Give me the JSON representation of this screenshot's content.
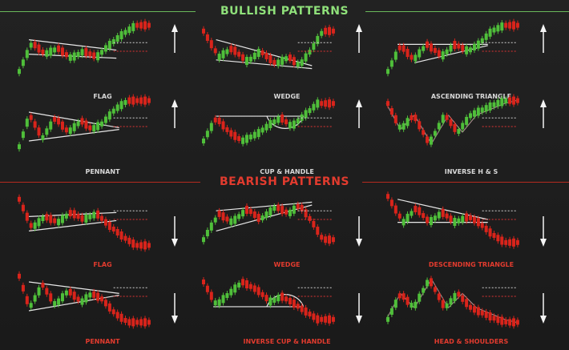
{
  "sections": {
    "bullish": {
      "title": "BULLISH PATTERNS",
      "color": "#8fe07a"
    },
    "bearish": {
      "title": "BEARISH PATTERNS",
      "color": "#e23b2e"
    }
  },
  "colors": {
    "up_candle": "#4fbf3a",
    "down_candle": "#d9241b",
    "trendline": "#e8e8e8",
    "dashed_level": "#d33",
    "background": "#1c1c1c"
  },
  "patterns": {
    "bullish": [
      {
        "label": "FLAG",
        "kind": "flag"
      },
      {
        "label": "WEDGE",
        "kind": "wedge"
      },
      {
        "label": "ASCENDING TRIANGLE",
        "kind": "asc-triangle"
      },
      {
        "label": "PENNANT",
        "kind": "pennant"
      },
      {
        "label": "CUP & HANDLE",
        "kind": "cup"
      },
      {
        "label": "INVERSE H & S",
        "kind": "ihs"
      }
    ],
    "bearish": [
      {
        "label": "FLAG",
        "kind": "flag"
      },
      {
        "label": "WEDGE",
        "kind": "wedge"
      },
      {
        "label": "DESCENDING TRIANGLE",
        "kind": "desc-triangle"
      },
      {
        "label": "PENNANT",
        "kind": "pennant"
      },
      {
        "label": "INVERSE CUP & HANDLE",
        "kind": "inv-cup"
      },
      {
        "label": "HEAD & SHOULDERS",
        "kind": "hs"
      }
    ]
  }
}
